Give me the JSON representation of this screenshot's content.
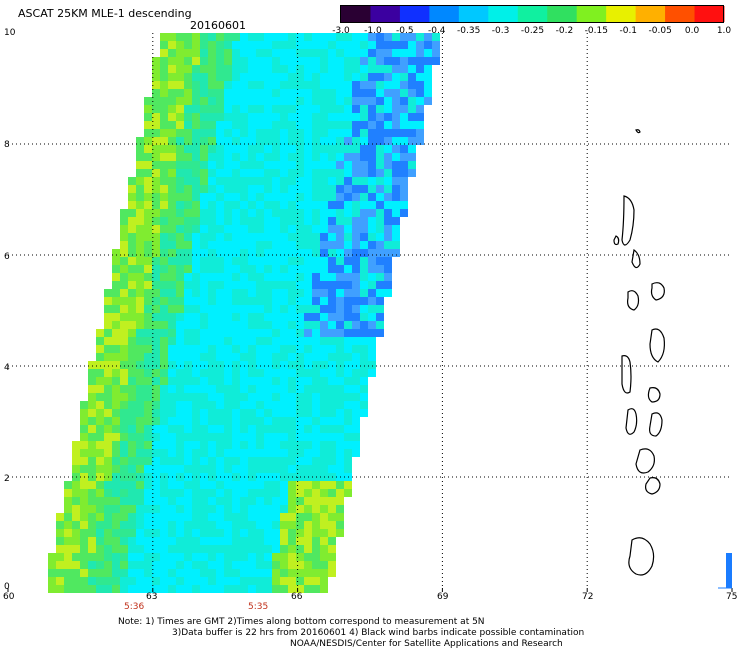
{
  "header": {
    "product": "ASCAT 25KM MLE-1 descending",
    "date": "20160601"
  },
  "colorbar": {
    "ticks": [
      "-3.0",
      "-1.0",
      "-0.5",
      "-0.4",
      "-0.35",
      "-0.3",
      "-0.25",
      "-0.2",
      "-0.15",
      "-0.1",
      "-0.05",
      "0.0",
      "1.0"
    ],
    "colors": [
      "#2a0033",
      "#3b00a0",
      "#1030ff",
      "#0088ff",
      "#00c8ff",
      "#00f0e8",
      "#10f0a0",
      "#30e060",
      "#80f020",
      "#e8f000",
      "#ffb000",
      "#ff5000",
      "#ff1010"
    ]
  },
  "map": {
    "lat_labels": [
      "10",
      "8",
      "6",
      "4",
      "2",
      "0"
    ],
    "lon_labels": [
      "60",
      "63",
      "66",
      "69",
      "72",
      "75"
    ],
    "lat_range": [
      0,
      10
    ],
    "lon_range": [
      60,
      75
    ],
    "pass_times": [
      {
        "label": "5:36",
        "lon": 62.6
      },
      {
        "label": "5:35",
        "lon": 65.3
      }
    ]
  },
  "notes": {
    "line1": "Note: 1) Times are GMT 2)Times along bottom correspond to measurement at 5N",
    "line2": "3)Data buffer is 22 hrs from 20160601 4) Black wind barbs indicate possible contamination",
    "line3": "NOAA/NESDIS/Center for Satellite Applications and Research"
  }
}
